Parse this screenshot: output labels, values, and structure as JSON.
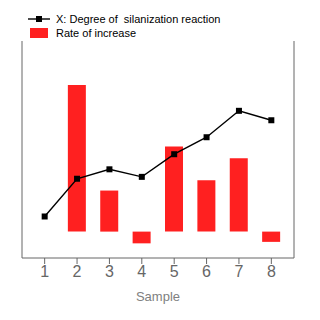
{
  "chart_data": {
    "type": "bar",
    "xlabel": "Sample",
    "x": [
      1,
      2,
      3,
      4,
      5,
      6,
      7,
      8
    ],
    "xlim": [
      0.3,
      8.7
    ],
    "xticks": [
      1,
      2,
      3,
      4,
      5,
      6,
      7,
      8
    ],
    "ylim": [
      -0.18,
      1.3
    ],
    "y2lim": [
      0.0,
      1.15
    ],
    "tick_labels": "x",
    "legend": "upper left",
    "series": [
      {
        "name": "X: Degree of  silanization reaction",
        "type": "line",
        "axis": "y2",
        "color": "#000000",
        "marker": "square",
        "values": [
          0.22,
          0.42,
          0.47,
          0.43,
          0.55,
          0.64,
          0.78,
          0.73
        ]
      },
      {
        "name": "Rate of increase",
        "type": "bar",
        "color": "#FF2020",
        "values": [
          0,
          1.0,
          0.28,
          -0.08,
          0.58,
          0.35,
          0.5,
          -0.07
        ]
      }
    ]
  }
}
